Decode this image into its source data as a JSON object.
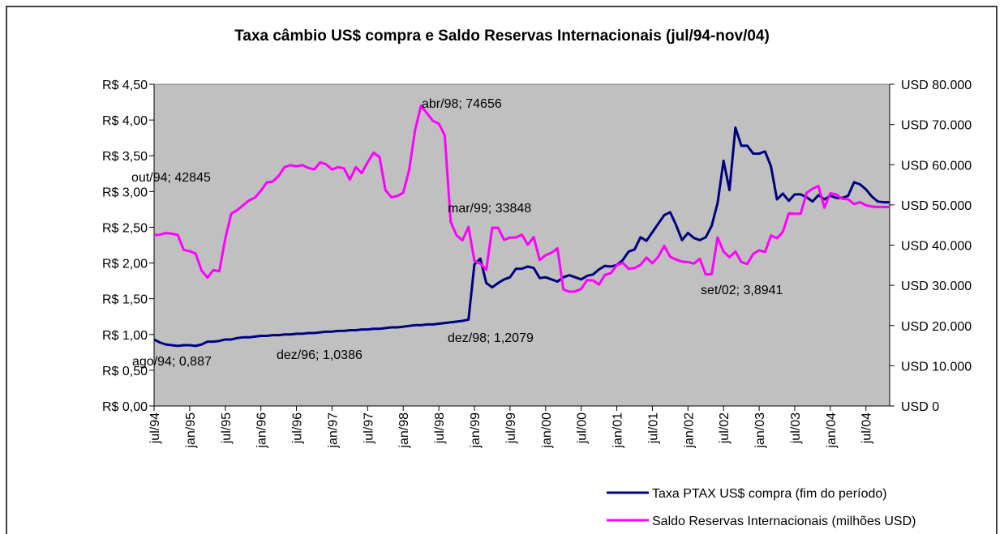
{
  "chart_data": {
    "type": "line",
    "title": "Taxa câmbio US$ compra e Saldo Reservas Internacionais (jul/94-nov/04)",
    "categories": [
      "jul/94",
      null,
      null,
      null,
      null,
      null,
      "jan/95",
      null,
      null,
      null,
      null,
      null,
      "jul/95",
      null,
      null,
      null,
      null,
      null,
      "jan/96",
      null,
      null,
      null,
      null,
      null,
      "jul/96",
      null,
      null,
      null,
      null,
      null,
      "jan/97",
      null,
      null,
      null,
      null,
      null,
      "jul/97",
      null,
      null,
      null,
      null,
      null,
      "jan/98",
      null,
      null,
      null,
      null,
      null,
      "jul/98",
      null,
      null,
      null,
      null,
      null,
      "jan/99",
      null,
      null,
      null,
      null,
      null,
      "jul/99",
      null,
      null,
      null,
      null,
      null,
      "jan/00",
      null,
      null,
      null,
      null,
      null,
      "jul/00",
      null,
      null,
      null,
      null,
      null,
      "jan/01",
      null,
      null,
      null,
      null,
      null,
      "jul/01",
      null,
      null,
      null,
      null,
      null,
      "jan/02",
      null,
      null,
      null,
      null,
      null,
      "jul/02",
      null,
      null,
      null,
      null,
      null,
      "jan/03",
      null,
      null,
      null,
      null,
      null,
      "jul/03",
      null,
      null,
      null,
      null,
      null,
      "jan/04",
      null,
      null,
      null,
      null,
      null,
      "jul/04",
      null,
      null,
      null,
      null
    ],
    "series": [
      {
        "name": "Taxa PTAX US$ compra (fim do período)",
        "color": "#000080",
        "axis": "y",
        "values": [
          0.93,
          0.887,
          0.86,
          0.85,
          0.84,
          0.85,
          0.85,
          0.84,
          0.86,
          0.9,
          0.9,
          0.91,
          0.93,
          0.93,
          0.95,
          0.96,
          0.96,
          0.97,
          0.98,
          0.98,
          0.99,
          0.99,
          1.0,
          1.0,
          1.01,
          1.01,
          1.02,
          1.02,
          1.03,
          1.0386,
          1.04,
          1.05,
          1.05,
          1.06,
          1.06,
          1.07,
          1.07,
          1.08,
          1.08,
          1.09,
          1.1,
          1.1,
          1.11,
          1.12,
          1.13,
          1.13,
          1.14,
          1.14,
          1.15,
          1.16,
          1.17,
          1.18,
          1.19,
          1.2079,
          1.98,
          2.06,
          1.72,
          1.66,
          1.72,
          1.77,
          1.8,
          1.92,
          1.92,
          1.95,
          1.93,
          1.79,
          1.8,
          1.77,
          1.74,
          1.8,
          1.83,
          1.8,
          1.77,
          1.82,
          1.84,
          1.91,
          1.96,
          1.95,
          1.97,
          2.04,
          2.16,
          2.19,
          2.36,
          2.31,
          2.43,
          2.55,
          2.67,
          2.71,
          2.53,
          2.32,
          2.42,
          2.35,
          2.32,
          2.36,
          2.52,
          2.84,
          3.43,
          3.02,
          3.8941,
          3.64,
          3.64,
          3.53,
          3.53,
          3.56,
          3.35,
          2.89,
          2.97,
          2.87,
          2.96,
          2.96,
          2.92,
          2.86,
          2.95,
          2.89,
          2.94,
          2.91,
          2.91,
          2.94,
          3.13,
          3.1,
          3.03,
          2.93,
          2.86,
          2.85,
          2.85
        ]
      },
      {
        "name": "Saldo Reservas Internacionais (milhões USD)",
        "color": "#ff00ff",
        "axis": "y2",
        "values": [
          42500,
          42600,
          43000,
          42845,
          42500,
          38800,
          38500,
          37900,
          33700,
          31900,
          33800,
          33500,
          41600,
          47800,
          48700,
          49900,
          51100,
          51800,
          53500,
          55600,
          55800,
          57200,
          59400,
          59900,
          59600,
          59900,
          59200,
          58800,
          60600,
          60100,
          58800,
          59400,
          59100,
          56300,
          59400,
          57900,
          60600,
          63000,
          61900,
          53700,
          51900,
          52200,
          53000,
          58700,
          68600,
          74656,
          72800,
          70900,
          70200,
          67300,
          45800,
          42400,
          41200,
          44500,
          36100,
          35400,
          33848,
          44300,
          44300,
          41300,
          41900,
          41900,
          42600,
          40100,
          42000,
          36300,
          37500,
          38100,
          39200,
          29000,
          28400,
          28500,
          29100,
          31300,
          31200,
          30200,
          32600,
          33000,
          35000,
          35600,
          34100,
          34300,
          35100,
          36900,
          35500,
          37100,
          39800,
          37100,
          36400,
          35900,
          35800,
          35400,
          36600,
          32700,
          32800,
          41900,
          38400,
          37000,
          38400,
          35800,
          35300,
          37800,
          38700,
          38300,
          42400,
          41700,
          43300,
          47900,
          47800,
          47800,
          53000,
          54000,
          54700,
          49300,
          52900,
          52600,
          51500,
          51400,
          50200,
          50700,
          49900,
          49600,
          49500,
          49500,
          49500
        ]
      }
    ],
    "ylim": [
      0,
      4.5
    ],
    "yticks": [
      {
        "value": 0,
        "label": "R$ 0,00"
      },
      {
        "value": 0.5,
        "label": "R$ 0,50"
      },
      {
        "value": 1,
        "label": "R$ 1,00"
      },
      {
        "value": 1.5,
        "label": "R$ 1,50"
      },
      {
        "value": 2,
        "label": "R$ 2,00"
      },
      {
        "value": 2.5,
        "label": "R$ 2,50"
      },
      {
        "value": 3,
        "label": "R$ 3,00"
      },
      {
        "value": 3.5,
        "label": "R$ 3,50"
      },
      {
        "value": 4,
        "label": "R$ 4,00"
      },
      {
        "value": 4.5,
        "label": "R$ 4,50"
      }
    ],
    "y2lim": [
      0,
      80000
    ],
    "y2ticks": [
      {
        "value": 0,
        "label": "USD 0"
      },
      {
        "value": 10000,
        "label": "USD 10.000"
      },
      {
        "value": 20000,
        "label": "USD 20.000"
      },
      {
        "value": 30000,
        "label": "USD 30.000"
      },
      {
        "value": 40000,
        "label": "USD 40.000"
      },
      {
        "value": 50000,
        "label": "USD 50.000"
      },
      {
        "value": 60000,
        "label": "USD 60.000"
      },
      {
        "value": 70000,
        "label": "USD 70.000"
      },
      {
        "value": 80000,
        "label": "USD 80.000"
      }
    ],
    "annotations": [
      "out/94; 42845",
      "abr/98; 74656",
      "mar/99; 33848",
      "set/02; 3,8941",
      "dez/98; 1,2079",
      "dez/96; 1,0386",
      "ago/94; 0,887"
    ],
    "grid": false,
    "legend": "bottom-right",
    "plot_background": "#c0c0c0"
  }
}
